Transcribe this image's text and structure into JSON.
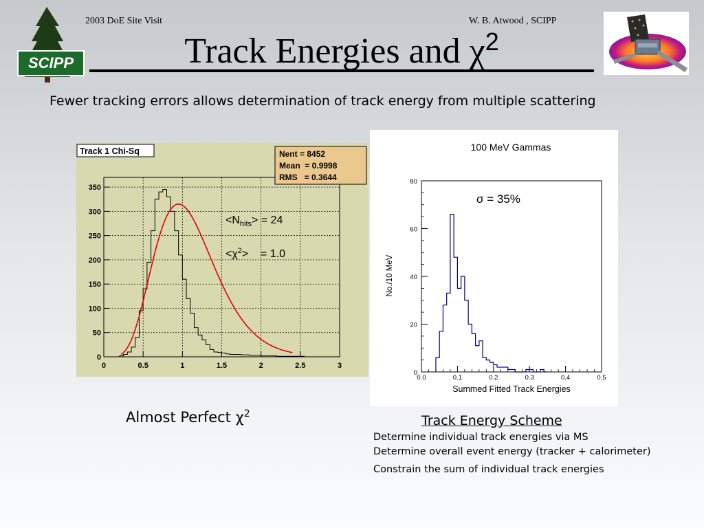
{
  "slide": {
    "header_left": "2003 DoE Site Visit",
    "header_right": "W. B. Atwood , SCIPP",
    "title": "Track Energies and χ",
    "title_sup": "2",
    "subtitle": "Fewer tracking errors allows determination of track energy from multiple scattering",
    "logo_text": "SCIPP",
    "caption_left": "Almost Perfect χ",
    "caption_left_sup": "2",
    "scheme_title": "Track Energy Scheme",
    "scheme_lines": [
      "Determine individual track energies via MS",
      "Determine overall event energy (tracker + calorimeter)",
      "Constrain the sum of individual track energies"
    ],
    "colors": {
      "plot_bg": "#d9d9b0",
      "stats_box": "#ebc98e",
      "fit_line": "#e00000",
      "hist_line": "#000080"
    }
  },
  "chart_data": [
    {
      "type": "histogram",
      "title": "Track 1 Chi-Sq",
      "stats": {
        "nent": "Nent = 8452",
        "mean": "Mean  = 0.9998",
        "rms": "RMS   = 0.3644"
      },
      "annotations": {
        "nhits": "<N",
        "nhits_sub": "hits",
        "nhits_val": "> = 24",
        "chi": "<χ",
        "chi_sup": "2",
        "chi_val": ">    = 1.0"
      },
      "xlim": [
        0,
        3
      ],
      "ylim": [
        0,
        370
      ],
      "xticks": [
        "0",
        "0.5",
        "1",
        "1.5",
        "2",
        "2.5",
        "3"
      ],
      "yticks": [
        "0",
        "50",
        "100",
        "150",
        "200",
        "250",
        "300",
        "350"
      ],
      "grid": true,
      "bin_width": 0.05,
      "x_start": 0.2,
      "values": [
        2,
        5,
        10,
        20,
        40,
        95,
        140,
        195,
        260,
        325,
        340,
        345,
        330,
        300,
        260,
        210,
        160,
        120,
        90,
        60,
        45,
        35,
        25,
        15,
        10,
        9,
        8,
        6,
        5,
        5,
        5,
        4,
        4,
        3,
        3,
        3,
        2,
        2,
        2,
        2,
        1,
        1,
        1,
        1,
        1,
        1,
        1,
        0,
        0,
        0,
        0,
        0,
        0,
        0,
        0,
        0
      ],
      "fit_curve": "red",
      "fit_peak": 315
    },
    {
      "type": "histogram",
      "title": "100 MeV Gammas",
      "xlabel": "Summed Fitted Track Energies",
      "ylabel": "No./10 MeV",
      "annotation": "σ = 35%",
      "xlim": [
        0,
        0.5
      ],
      "ylim": [
        0,
        80
      ],
      "xticks": [
        "0.0",
        "0.1",
        "0.2",
        "0.3",
        "0.4",
        "0.5"
      ],
      "yticks": [
        "0",
        "20",
        "40",
        "60",
        "80"
      ],
      "bin_width": 0.01,
      "x_start": 0.04,
      "values": [
        6,
        17,
        28,
        33,
        66,
        48,
        35,
        40,
        30,
        20,
        16,
        11,
        13,
        6,
        5,
        4,
        3,
        2,
        2,
        2,
        1,
        1,
        0,
        0,
        0,
        1,
        1,
        0,
        0,
        1,
        0
      ]
    }
  ]
}
